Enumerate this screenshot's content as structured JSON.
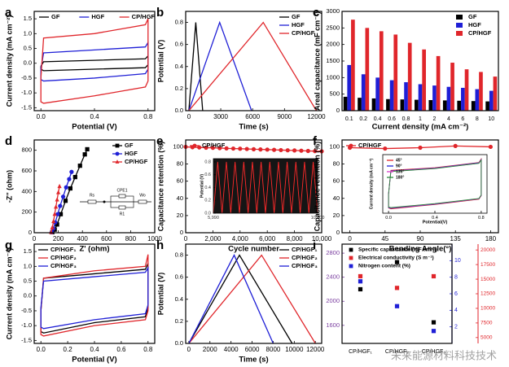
{
  "watermark": "未来能源材料科技技术",
  "chart_data": [
    {
      "panel": "a",
      "type": "line",
      "x_label": "Potential (V)",
      "y_label": "Current density (mA cm⁻²)",
      "xlim": [
        -0.05,
        0.85
      ],
      "ylim": [
        -1.6,
        1.75
      ],
      "xticks": [
        {
          "value": 0,
          "label": "0.0"
        },
        0.4,
        0.8
      ],
      "yticks": [
        -1.5,
        {
          "value": -1,
          "label": "-1.0"
        },
        -0.5,
        {
          "value": 0,
          "label": "0.0"
        },
        0.5,
        {
          "value": 1,
          "label": "1.0"
        },
        1.5
      ],
      "legend": "top",
      "x": [
        0,
        0.02,
        0.4,
        0.78,
        0.8,
        0.8,
        0.78,
        0.4,
        0.02,
        0,
        0
      ],
      "series": [
        {
          "name": "GF",
          "color": "#000000",
          "values": [
            -0.1,
            0.05,
            0.1,
            0.15,
            0.25,
            -0.05,
            -0.15,
            -0.2,
            -0.25,
            -0.2,
            -0.1
          ]
        },
        {
          "name": "HGF",
          "color": "#1f1fd6",
          "values": [
            -0.2,
            0.35,
            0.45,
            0.55,
            0.7,
            -0.2,
            -0.35,
            -0.5,
            -0.6,
            -0.55,
            -0.2
          ]
        },
        {
          "name": "CP/HGF",
          "color": "#e0262b",
          "values": [
            -0.5,
            0.85,
            1.0,
            1.3,
            1.5,
            -0.6,
            -0.8,
            -1.1,
            -1.35,
            -1.3,
            -0.5
          ]
        }
      ]
    },
    {
      "panel": "b",
      "type": "line",
      "x_label": "Time (s)",
      "y_label": "Potential (V)",
      "xlim": [
        -300,
        12500
      ],
      "ylim": [
        0,
        0.9
      ],
      "xticks": [
        0,
        3000,
        6000,
        9000,
        12000
      ],
      "yticks": [
        {
          "value": 0,
          "label": "0.0"
        },
        0.2,
        0.4,
        0.6,
        0.8
      ],
      "legend": "upper right",
      "series": [
        {
          "name": "GF",
          "color": "#000000",
          "x": [
            0,
            650,
            1300
          ],
          "values": [
            0,
            0.8,
            0
          ]
        },
        {
          "name": "HGF",
          "color": "#1f1fd6",
          "x": [
            0,
            2900,
            5900
          ],
          "values": [
            0,
            0.8,
            0
          ]
        },
        {
          "name": "CP/HGF",
          "color": "#e0262b",
          "x": [
            0,
            7000,
            12000
          ],
          "values": [
            0,
            0.8,
            0
          ]
        }
      ]
    },
    {
      "panel": "c",
      "type": "bar",
      "x_label": "Current density (mA cm⁻²)",
      "y_label": "Areal capacitance (mF cm⁻²)",
      "categories": [
        "0.1",
        "0.2",
        "0.4",
        "0.6",
        "0.8",
        "1",
        "2",
        "4",
        "6",
        "8",
        "10"
      ],
      "ylim": [
        0,
        3000
      ],
      "yticks": [
        0,
        500,
        1000,
        1500,
        2000,
        2500,
        3000
      ],
      "legend": "upper right",
      "series": [
        {
          "name": "GF",
          "color": "#000000",
          "values": [
            420,
            390,
            370,
            350,
            340,
            330,
            320,
            310,
            300,
            290,
            280
          ]
        },
        {
          "name": "HGF",
          "color": "#1f1fd6",
          "values": [
            1380,
            1100,
            1000,
            920,
            860,
            800,
            760,
            720,
            690,
            650,
            600
          ]
        },
        {
          "name": "CP/HGF",
          "color": "#e0262b",
          "values": [
            2750,
            2500,
            2400,
            2300,
            2050,
            1850,
            1650,
            1450,
            1250,
            1170,
            1030
          ]
        }
      ]
    },
    {
      "panel": "d",
      "type": "line",
      "x_label": "Z' (ohm)",
      "y_label": "-Z'' (ohm)",
      "xlim": [
        0,
        1000
      ],
      "ylim": [
        0,
        900
      ],
      "xticks": [
        0,
        200,
        400,
        600,
        800,
        1000
      ],
      "yticks": [
        0,
        200,
        400,
        600,
        800
      ],
      "legend": "upper right",
      "circuit_labels": [
        "Rs",
        "CPE1",
        "R1",
        "Wo"
      ],
      "series": [
        {
          "name": "GF",
          "color": "#000000",
          "marker": "square",
          "x": [
            150,
            170,
            190,
            220,
            260,
            300,
            340,
            380,
            420,
            440
          ],
          "values": [
            5,
            30,
            80,
            180,
            310,
            430,
            540,
            650,
            760,
            810
          ]
        },
        {
          "name": "HGF",
          "color": "#1f1fd6",
          "marker": "circle",
          "x": [
            145,
            160,
            175,
            195,
            215,
            240,
            265,
            290,
            310
          ],
          "values": [
            5,
            40,
            100,
            180,
            260,
            350,
            440,
            520,
            590
          ]
        },
        {
          "name": "CP/HGF",
          "color": "#e0262b",
          "marker": "triangle",
          "x": [
            140,
            150,
            160,
            170,
            180,
            190,
            200,
            210
          ],
          "values": [
            5,
            50,
            110,
            180,
            250,
            320,
            390,
            450
          ]
        }
      ]
    },
    {
      "panel": "e",
      "type": "line",
      "x_label": "Cycle number",
      "y_label": "Capacitance retention (%)",
      "xlim": [
        0,
        10000
      ],
      "ylim": [
        0,
        108
      ],
      "xticks": [
        0,
        {
          "value": 2000,
          "label": "2,000"
        },
        {
          "value": 4000,
          "label": "4,000"
        },
        {
          "value": 6000,
          "label": "6,000"
        },
        {
          "value": 8000,
          "label": "8,000"
        },
        {
          "value": 10000,
          "label": "10,000"
        }
      ],
      "yticks": [
        0,
        20,
        40,
        60,
        80,
        100
      ],
      "legend": "upper left",
      "x": [
        0,
        500,
        1000,
        1500,
        2000,
        2500,
        3000,
        3500,
        4000,
        4500,
        5000,
        5500,
        6000,
        6500,
        7000,
        7500,
        8000,
        8500,
        9000,
        9500,
        10000
      ],
      "series": [
        {
          "name": "CP/HGF",
          "color": "#e0262b",
          "marker": "circle",
          "values": [
            100,
            99.5,
            99.3,
            99,
            98.8,
            98.5,
            98.2,
            98,
            97.8,
            97.5,
            97.2,
            97,
            96.8,
            96.5,
            96.2,
            96,
            95.8,
            95.5,
            95.2,
            95,
            94.8
          ]
        }
      ],
      "inset": {
        "type": "line",
        "y_label": "Potential (V)",
        "background": "#151515",
        "xlim": [
          5990,
          10000
        ],
        "ylim": [
          0,
          0.85
        ],
        "xticks": [
          {
            "value": 5990,
            "label": "5,990"
          },
          {
            "value": 10000,
            "label": "10,000"
          }
        ],
        "yticks": [
          {
            "value": 0,
            "label": "0.0"
          },
          0.2,
          0.4,
          0.6,
          0.8
        ],
        "x": [
          5990,
          6157,
          6324,
          6491,
          6658,
          6825,
          6992,
          7159,
          7326,
          7493,
          7660,
          7827,
          7994,
          8161,
          8328,
          8495,
          8662,
          8829,
          8996,
          9163,
          9330,
          9497,
          9664,
          9831,
          10000
        ],
        "series": [
          {
            "color": "#ff2a2a",
            "values": [
              0,
              0.8,
              0,
              0.8,
              0,
              0.8,
              0,
              0.8,
              0,
              0.8,
              0,
              0.8,
              0,
              0.8,
              0,
              0.8,
              0,
              0.8,
              0,
              0.8,
              0,
              0.8,
              0,
              0.8,
              0
            ]
          }
        ]
      }
    },
    {
      "panel": "f",
      "type": "line",
      "x_label": "Bending Angle(°)",
      "y_label": "Capacitance retention (%)",
      "xlim": [
        -10,
        190
      ],
      "ylim": [
        0,
        108
      ],
      "xticks": [
        0,
        45,
        90,
        135,
        180
      ],
      "yticks": [
        0,
        20,
        40,
        60,
        80,
        100
      ],
      "legend": "upper left",
      "x": [
        0,
        45,
        90,
        135,
        180
      ],
      "series": [
        {
          "name": "CP/HGF",
          "color": "#e0262b",
          "marker": "circle",
          "values": [
            99,
            98,
            99,
            101,
            100
          ]
        }
      ],
      "inset": {
        "type": "line",
        "x_label": "Potential(V)",
        "y_label": "Current density (mA cm⁻²)",
        "background": "#ffffff",
        "xlim": [
          -0.05,
          0.85
        ],
        "ylim": [
          -1.6,
          1.75
        ],
        "xticks": [
          {
            "value": 0,
            "label": "0.0"
          },
          0.4,
          0.8
        ],
        "legend": "upper left",
        "x": [
          0,
          0.02,
          0.4,
          0.78,
          0.8,
          0.8,
          0.78,
          0.4,
          0.02,
          0,
          0
        ],
        "series": [
          {
            "name": "45°",
            "color": "#e0262b",
            "values": [
              -0.5,
              0.85,
              1.0,
              1.3,
              1.5,
              -0.6,
              -0.8,
              -1.1,
              -1.35,
              -1.3,
              -0.5
            ]
          },
          {
            "name": "90°",
            "color": "#1f1fd6",
            "values": [
              -0.5,
              0.82,
              0.98,
              1.28,
              1.47,
              -0.58,
              -0.78,
              -1.08,
              -1.32,
              -1.28,
              -0.5
            ]
          },
          {
            "name": "135°",
            "color": "#d63cc8",
            "values": [
              -0.5,
              0.8,
              0.96,
              1.26,
              1.45,
              -0.57,
              -0.77,
              -1.06,
              -1.3,
              -1.26,
              -0.5
            ]
          },
          {
            "name": "180°",
            "color": "#2a8a3a",
            "values": [
              -0.5,
              0.78,
              0.95,
              1.25,
              1.44,
              -0.56,
              -0.76,
              -1.05,
              -1.28,
              -1.25,
              -0.5
            ]
          }
        ]
      }
    },
    {
      "panel": "g",
      "type": "line",
      "x_label": "Potential (V)",
      "y_label": "Current density (mA cm⁻²)",
      "xlim": [
        -0.05,
        0.85
      ],
      "ylim": [
        -1.6,
        1.75
      ],
      "xticks": [
        {
          "value": 0,
          "label": "0.0"
        },
        0.2,
        0.4,
        0.6,
        0.8
      ],
      "yticks": [
        -1.5,
        {
          "value": -1,
          "label": "-1.0"
        },
        -0.5,
        {
          "value": 0,
          "label": "0.0"
        },
        0.5,
        {
          "value": 1,
          "label": "1.0"
        },
        1.5
      ],
      "legend": "upper left",
      "x": [
        0,
        0.02,
        0.4,
        0.78,
        0.8,
        0.8,
        0.78,
        0.4,
        0.02,
        0,
        0
      ],
      "series": [
        {
          "name": "CP/HGF₁",
          "color": "#000000",
          "values": [
            -0.5,
            0.6,
            0.75,
            0.9,
            1.1,
            -0.4,
            -0.7,
            -0.9,
            -1.25,
            -1.2,
            -0.5
          ]
        },
        {
          "name": "CP/HGF₂",
          "color": "#e0262b",
          "values": [
            -0.5,
            0.6,
            0.85,
            1.0,
            1.4,
            -0.5,
            -0.8,
            -1.0,
            -1.35,
            -1.3,
            -0.5
          ]
        },
        {
          "name": "CP/HGF₃",
          "color": "#1f1fd6",
          "values": [
            -0.4,
            0.5,
            0.65,
            0.8,
            0.95,
            -0.3,
            -0.6,
            -0.8,
            -1.1,
            -1.05,
            -0.4
          ]
        }
      ]
    },
    {
      "panel": "h",
      "type": "line",
      "x_label": "Time (s)",
      "y_label": "Potential (V)",
      "xlim": [
        -300,
        12600
      ],
      "ylim": [
        0,
        0.9
      ],
      "xticks": [
        0,
        2000,
        4000,
        6000,
        8000,
        10000,
        12000
      ],
      "yticks": [
        {
          "value": 0,
          "label": "0.0"
        },
        0.2,
        0.4,
        0.6,
        0.8
      ],
      "legend": "upper right",
      "series": [
        {
          "name": "CP/HGF₁",
          "color": "#000000",
          "x": [
            0,
            4800,
            9800
          ],
          "values": [
            0,
            0.8,
            0
          ]
        },
        {
          "name": "CP/HGF₂",
          "color": "#e0262b",
          "x": [
            0,
            6900,
            12000
          ],
          "values": [
            0,
            0.8,
            0
          ]
        },
        {
          "name": "CP/HGF₃",
          "color": "#1f1fd6",
          "x": [
            0,
            4300,
            8000
          ],
          "values": [
            0,
            0.8,
            0
          ]
        }
      ]
    },
    {
      "panel": "i",
      "type": "scatter",
      "categories": [
        "CP/HGF₁",
        "CP/HGF₂",
        "CP/HGF₃"
      ],
      "ylim": [
        1300,
        2950
      ],
      "yticks": [
        1600,
        2000,
        2400,
        2800
      ],
      "ycolor": "#7b3fa0",
      "y2lim": [
        0,
        12
      ],
      "y2ticks": [
        2,
        4,
        6,
        8,
        10
      ],
      "y2color": "#1f1fd6",
      "y3lim": [
        4000,
        21000
      ],
      "y3ticks": [
        5000,
        7500,
        10000,
        12500,
        15000,
        17500,
        20000
      ],
      "y3color": "#e0262b",
      "legend": "upper left",
      "series": [
        {
          "name": "Specific capacitance (mF cm⁻²)",
          "color": "#000000",
          "marker": "square",
          "values": [
            2200,
            2650,
            1650
          ]
        },
        {
          "name": "Electrical conductivity (S m⁻¹)",
          "color": "#e0262b",
          "marker": "square",
          "axis": "y3",
          "values": [
            15500,
            13500,
            15500
          ]
        },
        {
          "name": "Nitrogen content (%)",
          "color": "#1f1fd6",
          "marker": "square",
          "axis": "y2",
          "values": [
            7.5,
            4.5,
            1.5
          ]
        }
      ]
    }
  ]
}
